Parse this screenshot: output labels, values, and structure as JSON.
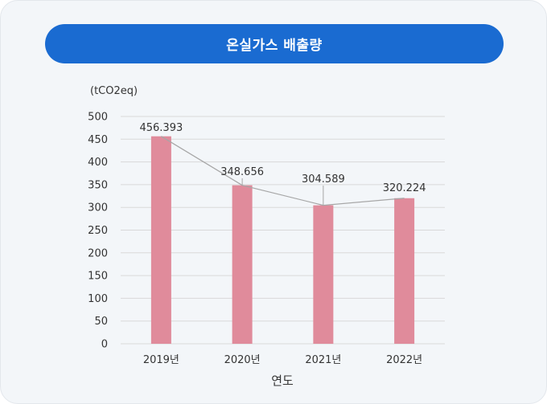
{
  "chart_data": {
    "type": "bar",
    "title": "온실가스 배출량",
    "unit_label": "(tCO2eq)",
    "xlabel": "연도",
    "categories": [
      "2019년",
      "2020년",
      "2021년",
      "2022년"
    ],
    "values": [
      456.393,
      348.656,
      304.589,
      320.224
    ],
    "value_labels": [
      "456.393",
      "348.656",
      "304.589",
      "320.224"
    ],
    "ylim": [
      0,
      500
    ],
    "yticks": [
      "0",
      "50",
      "100",
      "150",
      "200",
      "250",
      "300",
      "350",
      "400",
      "450",
      "500"
    ],
    "grid": true,
    "trend_line": true,
    "legend": "none",
    "colors": {
      "bar": "#e08b9b",
      "trend": "#a6a6a6",
      "grid": "#d9d9d9",
      "title_bg": "#1a6bd1"
    }
  }
}
